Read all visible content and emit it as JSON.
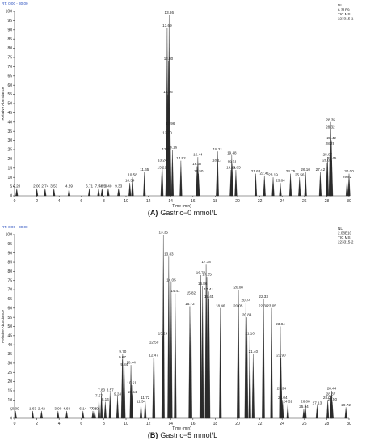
{
  "chart_data": [
    {
      "type": "chromatogram",
      "header": "RT: 0.00 - 30.00",
      "info": [
        "NL:",
        "6.31E9",
        "TIC MS",
        "223315-1"
      ],
      "caption_label": "(A)",
      "caption": "Gastric−0 mmol/L",
      "xlabel": "Time (min)",
      "ylabel": "Relative Abundance",
      "color": "#2a2a2a",
      "xlim": [
        0,
        30
      ],
      "ylim": [
        0,
        100
      ],
      "xticks": [
        0,
        2,
        4,
        6,
        8,
        10,
        12,
        14,
        16,
        18,
        20,
        22,
        24,
        26,
        28,
        30
      ],
      "yticks": [
        0,
        5,
        10,
        15,
        20,
        25,
        30,
        35,
        40,
        45,
        50,
        55,
        60,
        65,
        70,
        75,
        80,
        85,
        90,
        95,
        100
      ],
      "x": [
        13.86,
        13.69,
        13.8,
        13.76,
        13.96,
        13.7,
        13.64,
        14.16,
        14.92,
        16.37,
        16.44,
        16.5,
        18.21,
        18.17,
        19.41,
        19.48,
        19.51,
        19.85,
        21.63,
        22.41,
        23.19,
        23.84,
        24.75,
        25.56,
        26.1,
        27.42,
        28.35,
        28.32,
        28.42,
        28.29,
        28.07,
        28.03,
        28.45,
        30,
        29.82,
        13.24,
        13.21,
        11.65,
        10.58,
        10.34,
        9.33,
        8.4,
        7.85,
        7.54,
        6.71,
        4.89,
        3.53,
        2.74,
        2,
        0.2
      ],
      "x_labels": [
        "13.86",
        "13.69",
        "13.80",
        "13.76",
        "13.96",
        "13.70",
        "13.64",
        "14.16",
        "14.92",
        "16.37",
        "16.44",
        "16.50",
        "18.21",
        "18.17",
        "19.41",
        "19.48",
        "19.51",
        "19.85",
        "21.63",
        "22.41",
        "23.19",
        "23.84",
        "24.75",
        "25.56",
        "26.10",
        "27.42",
        "28.35",
        "28.32",
        "28.42",
        "28.29",
        "28.07",
        "28.03",
        "28.45",
        "30.00",
        "29.82",
        "13.24",
        "13.21",
        "11.65",
        "10.58",
        "10.34",
        "9.33",
        "8.40",
        "7.85",
        "7.54",
        "6.71",
        "4.89",
        "3.53",
        "2.74",
        "2.00",
        "0.20"
      ],
      "values": [
        98,
        91,
        73,
        55,
        38,
        33,
        24,
        25,
        19,
        16,
        21,
        12,
        24,
        18,
        14,
        22,
        17,
        14,
        12,
        11,
        10,
        7,
        12,
        10,
        13,
        13,
        40,
        36,
        30,
        27,
        21,
        18,
        19,
        12,
        9,
        18,
        14,
        13,
        10,
        7,
        4,
        4,
        4,
        4,
        4,
        4,
        4,
        4,
        4,
        4
      ]
    },
    {
      "type": "chromatogram",
      "header": "RT: 0.00 - 30.00",
      "info": [
        "NL:",
        "2.08E10",
        "TIC MS",
        "223315-2"
      ],
      "caption_label": "(B)",
      "caption": "Gastric−5 mmol/L",
      "xlabel": "Time (min)",
      "ylabel": "Relative Abundance",
      "color": "#2a2a2a",
      "xlim": [
        0,
        30
      ],
      "ylim": [
        0,
        100
      ],
      "xticks": [
        0,
        2,
        4,
        6,
        8,
        10,
        12,
        14,
        16,
        18,
        20,
        22,
        24,
        26,
        28,
        30
      ],
      "yticks": [
        0,
        5,
        10,
        15,
        20,
        25,
        30,
        35,
        40,
        45,
        50,
        55,
        60,
        65,
        70,
        75,
        80,
        85,
        90,
        95,
        100
      ],
      "x": [
        13.35,
        13.83,
        17.18,
        14.05,
        16.7,
        17.25,
        14.41,
        16.86,
        17.41,
        20.08,
        22.33,
        15.72,
        15.82,
        17.44,
        18.46,
        20.05,
        20.74,
        20.84,
        22.3,
        23.05,
        13.29,
        23.84,
        21.1,
        21.4,
        23.9,
        12.5,
        12.47,
        9.7,
        9.67,
        9.84,
        10.44,
        10.51,
        10.54,
        11.72,
        11.34,
        7.8,
        7.57,
        8.57,
        8.14,
        9.24,
        23.94,
        24.04,
        24.51,
        25.94,
        26.08,
        27.13,
        28.37,
        28.44,
        28.09,
        28.5,
        29.72,
        0.09,
        1.63,
        2.42,
        3.9,
        4.68,
        6.14,
        7.03,
        7.19
      ],
      "x_labels": [
        "13.35",
        "13.83",
        "17.18",
        "14.05",
        "16.70",
        "17.25",
        "14.41",
        "16.86",
        "17.41",
        "20.08",
        "22.33",
        "15.72",
        "15.82",
        "17.44",
        "18.46",
        "20.05",
        "20.74",
        "20.84",
        "22.30",
        "23.05",
        "13.29",
        "23.84",
        "21.10",
        "21.40",
        "23.90",
        "12.50",
        "12.47",
        "9.70",
        "9.67",
        "9.84",
        "10.44",
        "10.51",
        "10.54",
        "11.72",
        "11.34",
        "7.80",
        "7.57",
        "8.57",
        "8.14",
        "9.24",
        "23.94",
        "24.04",
        "24.51",
        "25.94",
        "26.08",
        "27.13",
        "28.37",
        "28.44",
        "28.09",
        "28.50",
        "29.72",
        "0.09",
        "1.63",
        "2.42",
        "3.90",
        "4.68",
        "6.14",
        "7.03",
        "7.19"
      ],
      "values": [
        100,
        88,
        84,
        74,
        78,
        77,
        68,
        72,
        69,
        70,
        65,
        61,
        67,
        65,
        60,
        60,
        63,
        55,
        60,
        60,
        45,
        50,
        45,
        35,
        33,
        40,
        33,
        35,
        32,
        28,
        29,
        18,
        13,
        10,
        8,
        14,
        11,
        14,
        9,
        12,
        15,
        10,
        8,
        5,
        8,
        7,
        12,
        15,
        10,
        9,
        6,
        4,
        4,
        4,
        4,
        4,
        4,
        4,
        4
      ]
    }
  ]
}
